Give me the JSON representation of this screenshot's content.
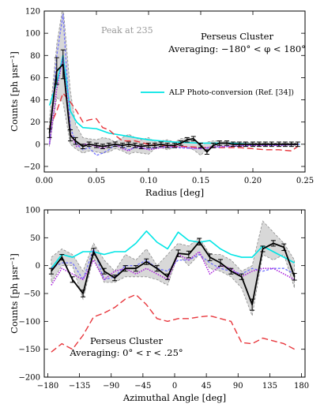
{
  "chart_data": [
    {
      "type": "line",
      "annotation_title": "Perseus Cluster",
      "annotation_sub": "Averaging: −180° < φ < 180°",
      "peak_label": "Peak at 235",
      "xlabel": "Radius [deg]",
      "ylabel": "Counts [ph μsr⁻¹]",
      "xlim": [
        0,
        0.25
      ],
      "ylim": [
        -25,
        120
      ],
      "xticks": [
        0.0,
        0.05,
        0.1,
        0.15,
        0.2,
        0.25
      ],
      "xtick_labels": [
        "0.00",
        "0.05",
        "0.10",
        "0.15",
        "0.20",
        "0.25"
      ],
      "yticks": [
        -20,
        0,
        20,
        40,
        60,
        80,
        100,
        120
      ],
      "ytick_labels": [
        "−20",
        "0",
        "20",
        "40",
        "60",
        "80",
        "100",
        "120"
      ],
      "legend": [
        {
          "name": "ALP Photo-conversion (Ref. [34])",
          "color": "#00e5e5"
        }
      ],
      "band": {
        "x": [
          0.005,
          0.012,
          0.018,
          0.025,
          0.03,
          0.037,
          0.043,
          0.05,
          0.056,
          0.062,
          0.068,
          0.075,
          0.081,
          0.087,
          0.093,
          0.1,
          0.106,
          0.112,
          0.118,
          0.125,
          0.131,
          0.137,
          0.143,
          0.15,
          0.156,
          0.162,
          0.168,
          0.175,
          0.181,
          0.187,
          0.193,
          0.2,
          0.206,
          0.212,
          0.218,
          0.225,
          0.231,
          0.237,
          0.243
        ],
        "upper": [
          22,
          90,
          125,
          48,
          18,
          6,
          5,
          4,
          6,
          5,
          2,
          6,
          9,
          6,
          4,
          6,
          2,
          3,
          4,
          2,
          5,
          6,
          3,
          -2,
          2,
          3,
          3,
          2,
          2,
          1,
          2,
          1,
          1,
          1,
          1,
          1,
          1,
          1,
          1
        ],
        "lower": [
          -2,
          42,
          38,
          0,
          -4,
          -8,
          -6,
          -7,
          -8,
          -7,
          -4,
          -6,
          -9,
          -7,
          -8,
          -9,
          -4,
          -3,
          -5,
          -3,
          -2,
          -3,
          -5,
          -10,
          -4,
          -3,
          -3,
          -2,
          -2,
          -1,
          -2,
          -1,
          -1,
          -1,
          -1,
          -1,
          -1,
          -1,
          -1
        ]
      },
      "series": [
        {
          "style": "black-errorbars",
          "color": "#000000",
          "x": [
            0.005,
            0.012,
            0.018,
            0.025,
            0.03,
            0.037,
            0.043,
            0.05,
            0.056,
            0.062,
            0.068,
            0.075,
            0.081,
            0.087,
            0.093,
            0.1,
            0.106,
            0.112,
            0.118,
            0.125,
            0.131,
            0.137,
            0.143,
            0.15,
            0.156,
            0.162,
            0.168,
            0.175,
            0.181,
            0.187,
            0.193,
            0.2,
            0.206,
            0.212,
            0.218,
            0.225,
            0.231,
            0.237,
            0.243
          ],
          "y": [
            10,
            66,
            72,
            8,
            3,
            -2,
            0,
            -1,
            -2,
            -1,
            0,
            -1,
            0,
            -1,
            -2,
            -1,
            -1,
            0,
            -1,
            -1,
            1,
            4,
            5,
            -1,
            -7,
            -1,
            1,
            1,
            0,
            0,
            0,
            0,
            0,
            0,
            0,
            0,
            0,
            0,
            0
          ],
          "err": [
            4,
            12,
            13,
            5,
            3,
            2,
            2,
            2,
            2,
            2,
            2,
            2,
            2,
            2,
            2,
            2,
            2,
            2,
            2,
            2,
            2,
            2,
            2,
            2,
            2,
            2,
            2,
            2,
            2,
            2,
            2,
            2,
            2,
            2,
            2,
            2,
            2,
            2,
            2
          ]
        },
        {
          "style": "cyan-solid",
          "color": "#00e5e5",
          "x": [
            0.005,
            0.012,
            0.018,
            0.025,
            0.031,
            0.037,
            0.05,
            0.062,
            0.075,
            0.087,
            0.1,
            0.112,
            0.125,
            0.15,
            0.175,
            0.2,
            0.225,
            0.245
          ],
          "y": [
            35,
            55,
            80,
            30,
            20,
            15,
            14,
            10,
            8,
            6,
            4,
            3,
            2,
            1,
            1,
            0,
            0,
            0
          ]
        },
        {
          "style": "red-dashed",
          "color": "#e8363c",
          "x": [
            0.005,
            0.012,
            0.018,
            0.025,
            0.031,
            0.037,
            0.043,
            0.05,
            0.056,
            0.062,
            0.068,
            0.075,
            0.087,
            0.1,
            0.112,
            0.125,
            0.137,
            0.15,
            0.162,
            0.175,
            0.187,
            0.2,
            0.212,
            0.225,
            0.237,
            0.243
          ],
          "y": [
            15,
            30,
            46,
            38,
            30,
            20,
            22,
            23,
            15,
            13,
            8,
            3,
            3,
            0,
            -1,
            -2,
            -2,
            -3,
            -3,
            -3,
            -3,
            -4,
            -5,
            -5,
            -6,
            -2
          ]
        },
        {
          "style": "blue-dotted",
          "color": "#6f6fff",
          "x": [
            0.005,
            0.012,
            0.018,
            0.025,
            0.031,
            0.037,
            0.043,
            0.05,
            0.056,
            0.062,
            0.068,
            0.075,
            0.081,
            0.087,
            0.1,
            0.112,
            0.125,
            0.15,
            0.175,
            0.2,
            0.225,
            0.245
          ],
          "y": [
            0,
            80,
            117,
            15,
            0,
            -5,
            -3,
            -10,
            -8,
            -5,
            0,
            -2,
            -5,
            -3,
            -4,
            -2,
            -3,
            -4,
            -2,
            -1,
            -1,
            0
          ]
        },
        {
          "style": "purple-dotted",
          "color": "#aa22dd",
          "x": [
            0.005,
            0.012,
            0.018,
            0.025,
            0.031,
            0.037,
            0.043,
            0.05,
            0.056,
            0.062,
            0.068,
            0.075,
            0.081,
            0.087,
            0.093,
            0.1,
            0.112,
            0.125,
            0.137,
            0.15,
            0.162,
            0.175,
            0.2,
            0.225,
            0.245
          ],
          "y": [
            0,
            50,
            78,
            10,
            -2,
            0,
            0,
            -2,
            -4,
            -1,
            0,
            -4,
            -6,
            -2,
            -3,
            -5,
            -3,
            -2,
            -3,
            -4,
            -2,
            -2,
            -1,
            -1,
            0
          ]
        }
      ]
    },
    {
      "type": "line",
      "annotation_title": "Perseus Cluster",
      "annotation_sub": "Averaging: 0° < r < .25°",
      "xlabel": "Azimuthal Angle [deg]",
      "ylabel": "Counts [ph μsr⁻¹]",
      "xlim": [
        -185,
        185
      ],
      "ylim": [
        -200,
        100
      ],
      "xticks": [
        -180,
        -135,
        -90,
        -45,
        0,
        45,
        90,
        135,
        180
      ],
      "xtick_labels": [
        "−180",
        "−135",
        "−90",
        "−45",
        "0",
        "45",
        "90",
        "135",
        "180"
      ],
      "yticks": [
        -200,
        -150,
        -100,
        -50,
        0,
        50,
        100
      ],
      "ytick_labels": [
        "−200",
        "−150",
        "−100",
        "−50",
        "0",
        "50",
        "100"
      ],
      "band": {
        "x": [
          -175,
          -160,
          -145,
          -130,
          -115,
          -100,
          -85,
          -70,
          -55,
          -40,
          -25,
          -10,
          5,
          20,
          35,
          50,
          65,
          80,
          95,
          110,
          125,
          140,
          155,
          170
        ],
        "upper": [
          15,
          30,
          20,
          -10,
          40,
          10,
          -10,
          20,
          10,
          30,
          0,
          20,
          40,
          35,
          50,
          20,
          20,
          10,
          -10,
          0,
          80,
          60,
          40,
          10
        ],
        "lower": [
          -30,
          0,
          0,
          -60,
          15,
          -30,
          -30,
          -20,
          -20,
          -20,
          -25,
          -35,
          20,
          0,
          20,
          -5,
          -10,
          -20,
          -40,
          -90,
          20,
          10,
          20,
          -40
        ]
      },
      "series": [
        {
          "style": "black-errorbars",
          "color": "#000000",
          "x": [
            -175,
            -160,
            -145,
            -130,
            -115,
            -100,
            -85,
            -70,
            -55,
            -40,
            -25,
            -10,
            5,
            20,
            35,
            50,
            65,
            80,
            95,
            110,
            125,
            140,
            155,
            170
          ],
          "y": [
            -10,
            15,
            -25,
            -50,
            25,
            -10,
            -22,
            -5,
            -5,
            7,
            -5,
            -20,
            22,
            20,
            43,
            15,
            5,
            -10,
            -20,
            -70,
            30,
            40,
            33,
            -20
          ],
          "err": [
            5,
            5,
            5,
            6,
            6,
            5,
            5,
            5,
            5,
            5,
            5,
            5,
            6,
            6,
            6,
            6,
            6,
            5,
            5,
            10,
            5,
            5,
            6,
            6
          ]
        },
        {
          "style": "cyan-solid",
          "color": "#00e5e5",
          "x": [
            -175,
            -160,
            -145,
            -130,
            -115,
            -100,
            -85,
            -70,
            -55,
            -40,
            -25,
            -10,
            5,
            20,
            35,
            50,
            65,
            80,
            95,
            110,
            125,
            140,
            155,
            170
          ],
          "y": [
            -5,
            20,
            15,
            25,
            25,
            20,
            25,
            25,
            40,
            62,
            42,
            30,
            60,
            45,
            42,
            45,
            30,
            20,
            15,
            15,
            35,
            25,
            15,
            5
          ]
        },
        {
          "style": "red-dashed",
          "color": "#e8363c",
          "x": [
            -175,
            -160,
            -145,
            -130,
            -115,
            -100,
            -85,
            -70,
            -55,
            -40,
            -25,
            -10,
            5,
            20,
            35,
            50,
            65,
            80,
            95,
            110,
            125,
            140,
            155,
            170
          ],
          "y": [
            -155,
            -140,
            -150,
            -125,
            -92,
            -85,
            -75,
            -60,
            -52,
            -70,
            -95,
            -100,
            -95,
            -95,
            -92,
            -90,
            -95,
            -100,
            -138,
            -140,
            -130,
            -135,
            -140,
            -150
          ]
        },
        {
          "style": "blue-dotted",
          "color": "#6f6fff",
          "x": [
            -175,
            -160,
            -145,
            -130,
            -115,
            -100,
            -85,
            -70,
            -55,
            -40,
            -25,
            -10,
            5,
            20,
            35,
            50,
            65,
            80,
            95,
            110,
            125,
            140,
            155,
            170
          ],
          "y": [
            -5,
            5,
            5,
            -25,
            30,
            -25,
            -20,
            0,
            0,
            10,
            -5,
            -10,
            10,
            10,
            20,
            5,
            -5,
            -10,
            -15,
            -5,
            -10,
            -5,
            -5,
            -15
          ]
        },
        {
          "style": "purple-dotted",
          "color": "#aa22dd",
          "x": [
            -175,
            -160,
            -145,
            -130,
            -115,
            -100,
            -85,
            -70,
            -55,
            -40,
            -25,
            -10,
            5,
            20,
            35,
            50,
            65,
            80,
            95,
            110,
            125,
            140,
            155,
            170
          ],
          "y": [
            -35,
            -5,
            -15,
            -25,
            10,
            -25,
            -10,
            -5,
            -15,
            -5,
            -15,
            -25,
            20,
            10,
            25,
            -15,
            0,
            -5,
            -20,
            -10,
            -5,
            -5,
            -15,
            -25
          ]
        }
      ]
    }
  ]
}
